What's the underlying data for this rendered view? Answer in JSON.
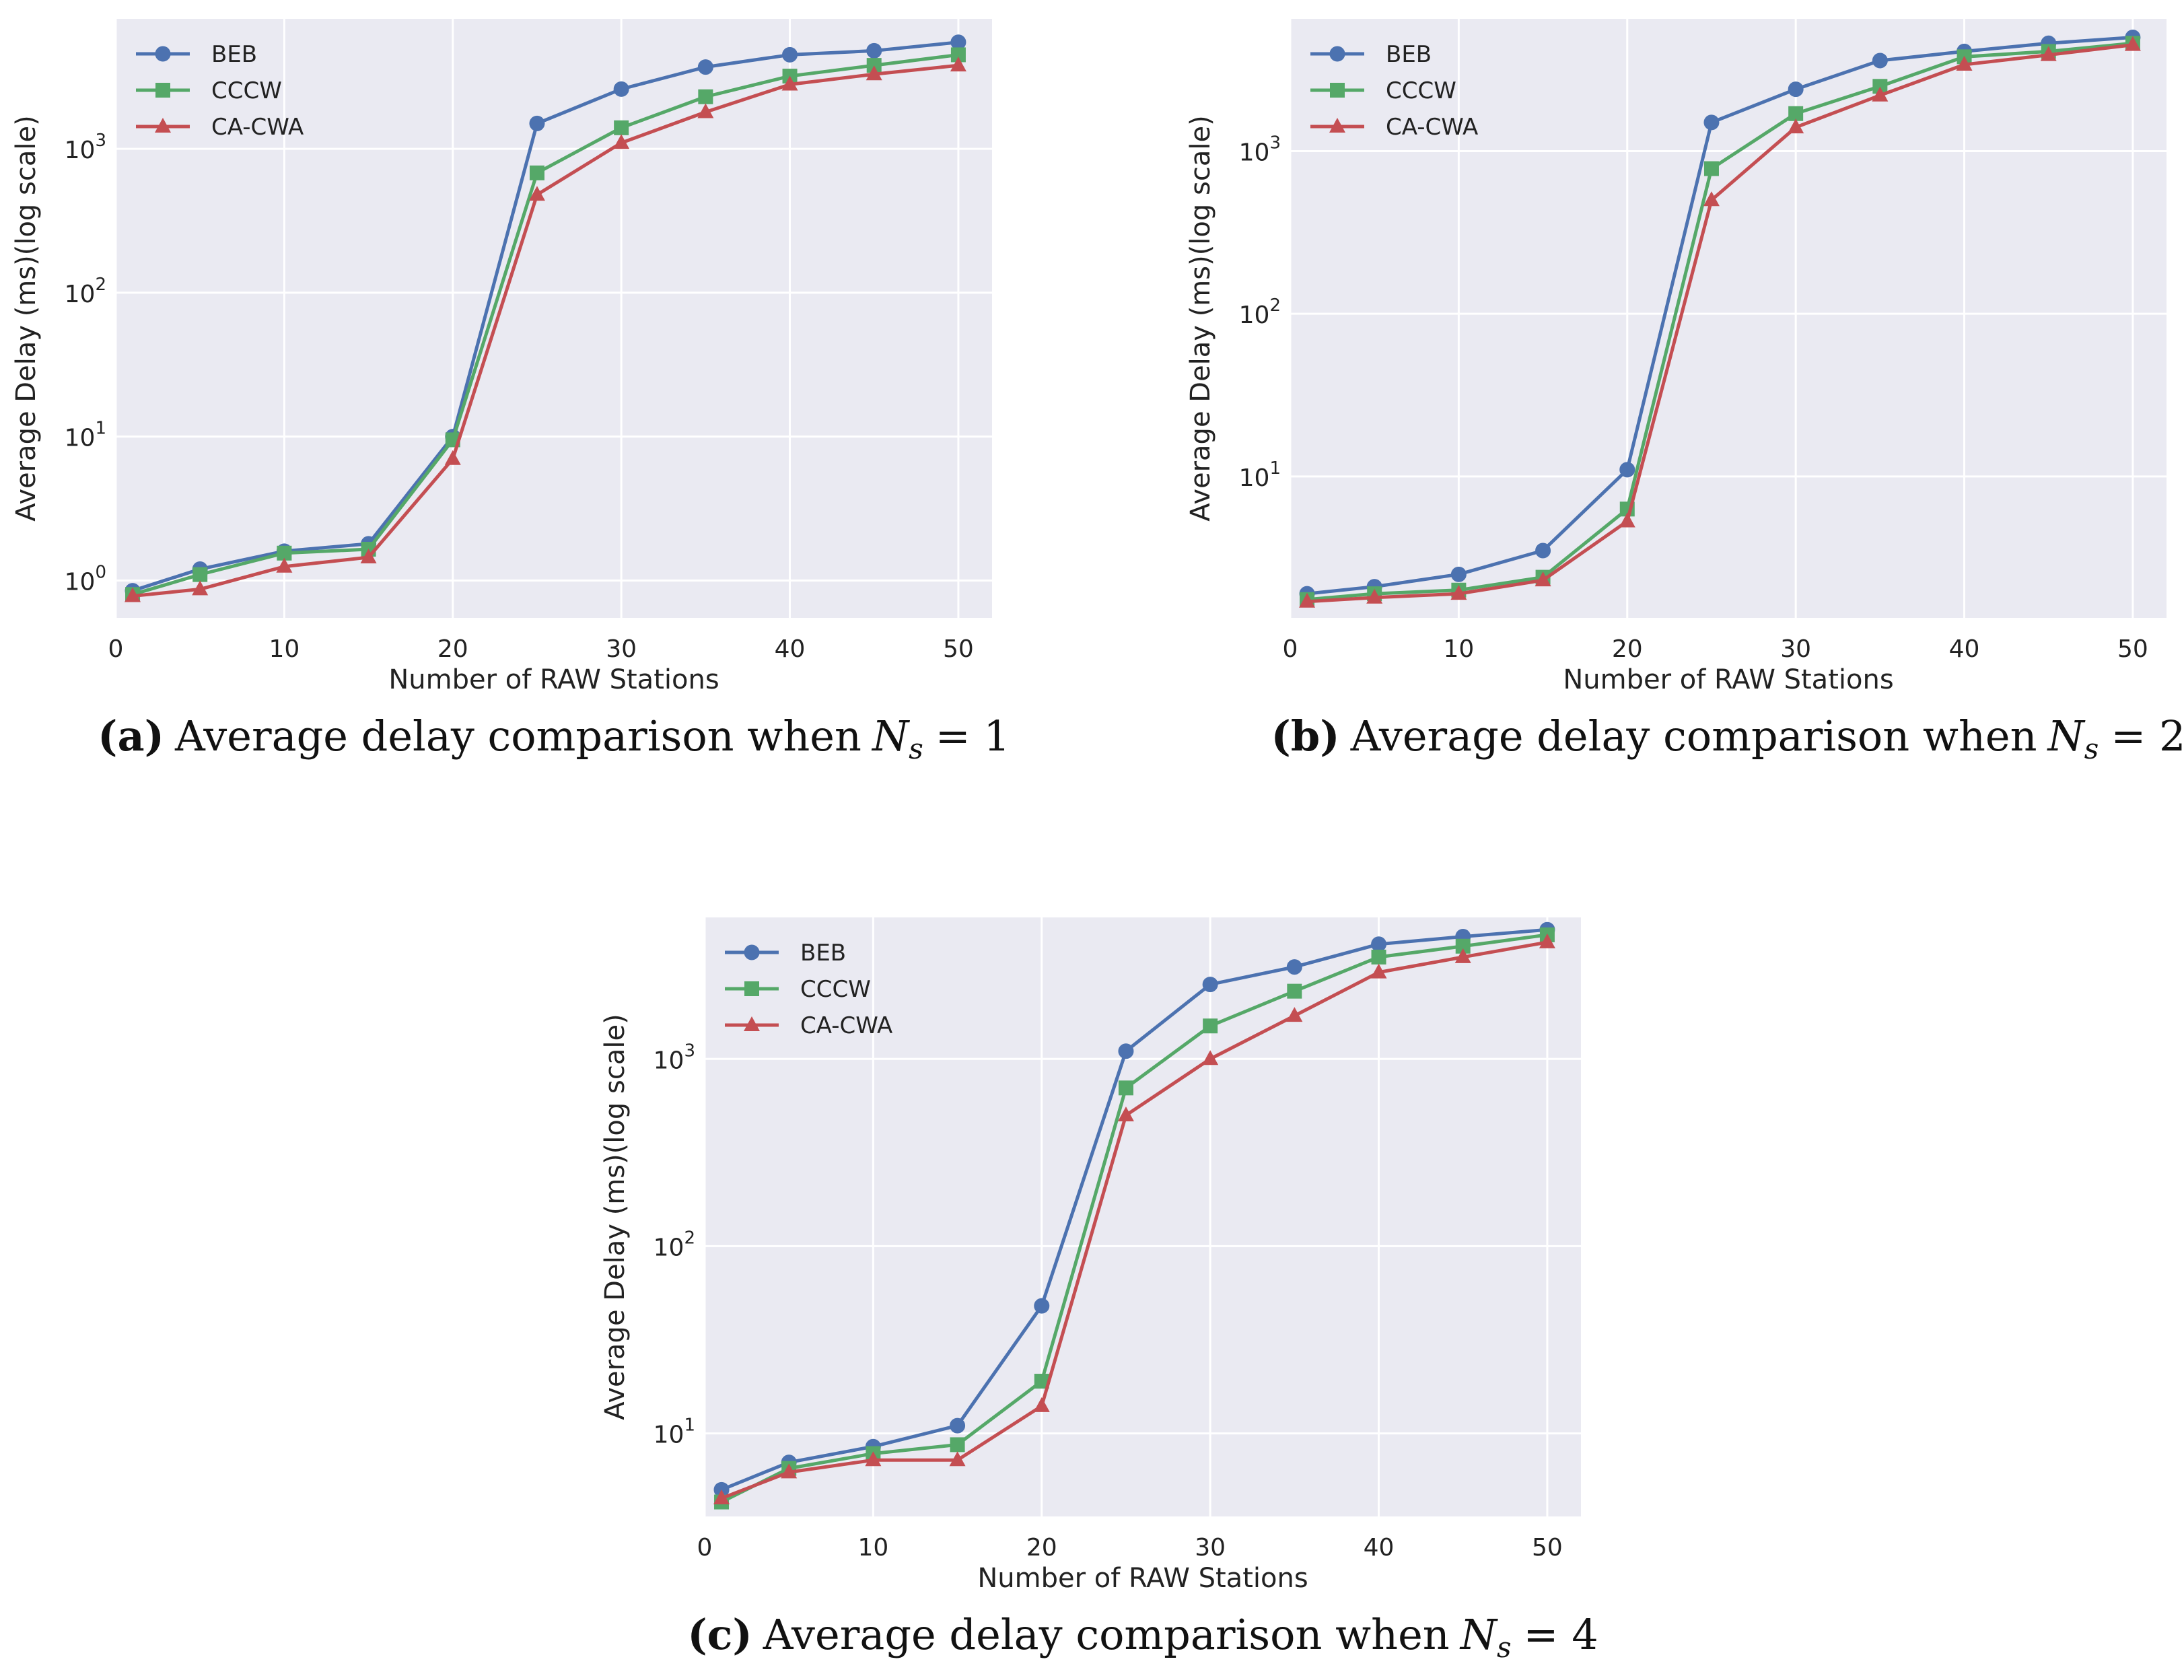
{
  "chart_data": [
    {
      "type": "line",
      "caption": {
        "tag": "(a)",
        "text": "Average delay comparison when",
        "var_main": "N",
        "var_sub": "s",
        "var_rhs": "= 1"
      },
      "xlabel": "Number of RAW Stations",
      "ylabel": "Average Delay (ms)(log scale)",
      "xlim": [
        0,
        52
      ],
      "ylim": [
        0.55,
        8000
      ],
      "yscale": "log",
      "xticks": [
        0,
        10,
        20,
        30,
        40,
        50
      ],
      "yticks": [
        {
          "value": 1,
          "base": "10",
          "exp": "0"
        },
        {
          "value": 10,
          "base": "10",
          "exp": "1"
        },
        {
          "value": 100,
          "base": "10",
          "exp": "2"
        },
        {
          "value": 1000,
          "base": "10",
          "exp": "3"
        }
      ],
      "grid": true,
      "legend": "top-left",
      "x": [
        1,
        5,
        10,
        15,
        20,
        25,
        30,
        35,
        40,
        45,
        50
      ],
      "series": [
        {
          "name": "BEB",
          "marker": "circle",
          "color": "#4c72b0",
          "values": [
            0.85,
            1.2,
            1.6,
            1.8,
            10,
            1500,
            2600,
            3700,
            4500,
            4800,
            5500
          ]
        },
        {
          "name": "CCCW",
          "marker": "square",
          "color": "#55a868",
          "values": [
            0.8,
            1.1,
            1.55,
            1.65,
            9.5,
            680,
            1400,
            2300,
            3200,
            3800,
            4500
          ]
        },
        {
          "name": "CA-CWA",
          "marker": "triangle",
          "color": "#c44e52",
          "values": [
            0.78,
            0.87,
            1.25,
            1.45,
            7,
            480,
            1100,
            1800,
            2800,
            3300,
            3800
          ]
        }
      ]
    },
    {
      "type": "line",
      "caption": {
        "tag": "(b)",
        "text": "Average delay comparison when",
        "var_main": "N",
        "var_sub": "s",
        "var_rhs": "= 2"
      },
      "xlabel": "Number of RAW Stations",
      "ylabel": "Average Delay (ms)(log scale)",
      "xlim": [
        0,
        52
      ],
      "ylim": [
        1.35,
        6500
      ],
      "yscale": "log",
      "xticks": [
        0,
        10,
        20,
        30,
        40,
        50
      ],
      "yticks": [
        {
          "value": 10,
          "base": "10",
          "exp": "1"
        },
        {
          "value": 100,
          "base": "10",
          "exp": "2"
        },
        {
          "value": 1000,
          "base": "10",
          "exp": "3"
        }
      ],
      "grid": true,
      "legend": "top-left",
      "x": [
        1,
        5,
        10,
        15,
        20,
        25,
        30,
        35,
        40,
        45,
        50
      ],
      "series": [
        {
          "name": "BEB",
          "marker": "circle",
          "color": "#4c72b0",
          "values": [
            1.9,
            2.1,
            2.5,
            3.5,
            11,
            1500,
            2400,
            3600,
            4100,
            4600,
            5000
          ]
        },
        {
          "name": "CCCW",
          "marker": "square",
          "color": "#55a868",
          "values": [
            1.75,
            1.9,
            2.0,
            2.4,
            6.3,
            780,
            1700,
            2500,
            3800,
            4100,
            4600
          ]
        },
        {
          "name": "CA-CWA",
          "marker": "triangle",
          "color": "#c44e52",
          "values": [
            1.7,
            1.8,
            1.9,
            2.3,
            5.3,
            500,
            1400,
            2200,
            3400,
            3900,
            4500
          ]
        }
      ]
    },
    {
      "type": "line",
      "caption": {
        "tag": "(c)",
        "text": "Average delay comparison when",
        "var_main": "N",
        "var_sub": "s",
        "var_rhs": "= 4"
      },
      "xlabel": "Number of RAW Stations",
      "ylabel": "Average Delay (ms)(log scale)",
      "xlim": [
        0,
        52
      ],
      "ylim": [
        3.6,
        5700
      ],
      "yscale": "log",
      "xticks": [
        0,
        10,
        20,
        30,
        40,
        50
      ],
      "yticks": [
        {
          "value": 10,
          "base": "10",
          "exp": "1"
        },
        {
          "value": 100,
          "base": "10",
          "exp": "2"
        },
        {
          "value": 1000,
          "base": "10",
          "exp": "3"
        }
      ],
      "grid": true,
      "legend": "top-left",
      "x": [
        1,
        5,
        10,
        15,
        20,
        25,
        30,
        35,
        40,
        45,
        50
      ],
      "series": [
        {
          "name": "BEB",
          "marker": "circle",
          "color": "#4c72b0",
          "values": [
            5,
            7,
            8.5,
            11,
            48,
            1100,
            2500,
            3100,
            4100,
            4500,
            4900
          ]
        },
        {
          "name": "CCCW",
          "marker": "square",
          "color": "#55a868",
          "values": [
            4.3,
            6.5,
            7.8,
            8.7,
            19,
            700,
            1500,
            2300,
            3500,
            4000,
            4600
          ]
        },
        {
          "name": "CA-CWA",
          "marker": "triangle",
          "color": "#c44e52",
          "values": [
            4.5,
            6.2,
            7.2,
            7.2,
            14,
            500,
            1000,
            1700,
            2900,
            3500,
            4200
          ]
        }
      ]
    }
  ]
}
